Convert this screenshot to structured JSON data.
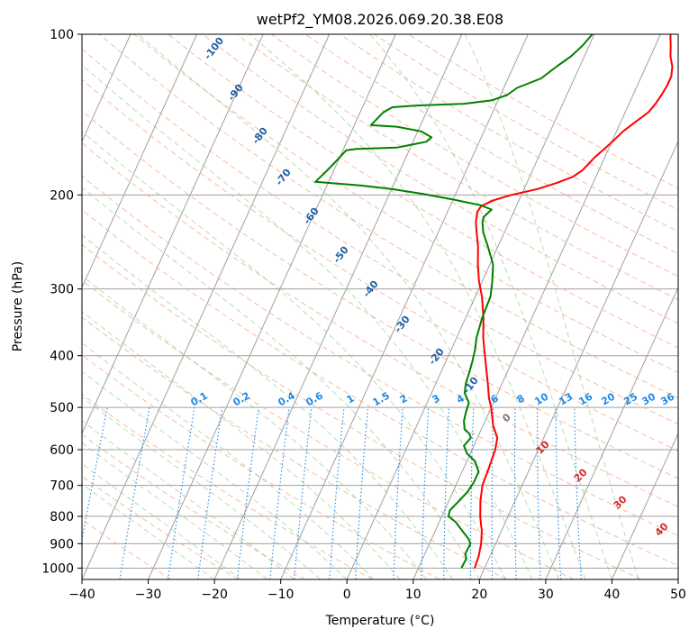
{
  "chart_data": {
    "type": "line",
    "title": "wetPf2_YM08.2026.069.20.38.E08",
    "xlabel": "Temperature (°C)",
    "ylabel": "Pressure (hPa)",
    "xlim": [
      -40,
      50
    ],
    "ylim": [
      1050,
      100
    ],
    "y_scale": "log",
    "grid": true,
    "x_ticks": [
      "−40",
      "−30",
      "−20",
      "−10",
      "0",
      "10",
      "20",
      "30",
      "40",
      "50"
    ],
    "x_tick_values": [
      -40,
      -30,
      -20,
      -10,
      0,
      10,
      20,
      30,
      40,
      50
    ],
    "y_ticks": [
      "100",
      "200",
      "300",
      "400",
      "500",
      "600",
      "700",
      "800",
      "900",
      "1000"
    ],
    "y_tick_values": [
      100,
      200,
      300,
      400,
      500,
      600,
      700,
      800,
      900,
      1000
    ],
    "series": [
      {
        "color": "#ff0000",
        "points": [
          [
            18.5,
            1000
          ],
          [
            18.3,
            950
          ],
          [
            17.8,
            900
          ],
          [
            17.0,
            850
          ],
          [
            16.5,
            830
          ],
          [
            15.8,
            800
          ],
          [
            14.8,
            750
          ],
          [
            14.0,
            700
          ],
          [
            13.8,
            650
          ],
          [
            13.5,
            600
          ],
          [
            13.0,
            570
          ],
          [
            11.5,
            540
          ],
          [
            10.0,
            500
          ],
          [
            9.0,
            480
          ],
          [
            7.8,
            450
          ],
          [
            5.5,
            400
          ],
          [
            4.0,
            370
          ],
          [
            2.7,
            340
          ],
          [
            1.0,
            310
          ],
          [
            -0.5,
            290
          ],
          [
            -1.8,
            270
          ],
          [
            -3.0,
            250
          ],
          [
            -4.2,
            235
          ],
          [
            -5.0,
            225
          ],
          [
            -5.5,
            215
          ],
          [
            -5.3,
            210
          ],
          [
            -4.0,
            205
          ],
          [
            -1.5,
            200
          ],
          [
            2.0,
            195
          ],
          [
            4.5,
            190
          ],
          [
            6.5,
            185
          ],
          [
            7.5,
            180
          ],
          [
            8.0,
            175
          ],
          [
            8.5,
            170
          ],
          [
            9.5,
            163
          ],
          [
            10.2,
            158
          ],
          [
            11.0,
            152
          ],
          [
            12.0,
            147
          ],
          [
            13.5,
            140
          ],
          [
            14.0,
            135
          ],
          [
            14.3,
            130
          ],
          [
            14.5,
            125
          ],
          [
            14.5,
            120
          ],
          [
            14.0,
            115
          ],
          [
            13.0,
            110
          ],
          [
            12.3,
            105
          ],
          [
            11.8,
            102
          ],
          [
            11.5,
            100
          ]
        ]
      },
      {
        "color": "#008000",
        "points": [
          [
            16.5,
            1000
          ],
          [
            16.6,
            960
          ],
          [
            16.1,
            940
          ],
          [
            16.2,
            900
          ],
          [
            15.5,
            880
          ],
          [
            14.0,
            850
          ],
          [
            12.5,
            820
          ],
          [
            11.0,
            800
          ],
          [
            10.8,
            780
          ],
          [
            11.5,
            750
          ],
          [
            12.2,
            720
          ],
          [
            12.5,
            690
          ],
          [
            12.5,
            660
          ],
          [
            11.2,
            630
          ],
          [
            9.5,
            610
          ],
          [
            8.5,
            590
          ],
          [
            9.0,
            570
          ],
          [
            8.5,
            560
          ],
          [
            7.5,
            550
          ],
          [
            6.8,
            530
          ],
          [
            6.5,
            510
          ],
          [
            6.3,
            490
          ],
          [
            5.0,
            470
          ],
          [
            4.5,
            450
          ],
          [
            4.3,
            430
          ],
          [
            4.0,
            410
          ],
          [
            3.6,
            390
          ],
          [
            3.0,
            370
          ],
          [
            2.5,
            340
          ],
          [
            2.3,
            310
          ],
          [
            1.5,
            290
          ],
          [
            0.5,
            270
          ],
          [
            -1.5,
            250
          ],
          [
            -3.2,
            235
          ],
          [
            -4.0,
            225
          ],
          [
            -4.2,
            220
          ],
          [
            -3.5,
            213
          ],
          [
            -5.5,
            209
          ],
          [
            -10.0,
            204
          ],
          [
            -15.0,
            199
          ],
          [
            -20.0,
            195
          ],
          [
            -25.0,
            192
          ],
          [
            -32.0,
            189
          ],
          [
            -31.0,
            180
          ],
          [
            -30.5,
            175
          ],
          [
            -30.0,
            170
          ],
          [
            -29.5,
            165
          ],
          [
            -28.0,
            164
          ],
          [
            -22.0,
            163
          ],
          [
            -20.0,
            161
          ],
          [
            -18.0,
            159
          ],
          [
            -17.5,
            156
          ],
          [
            -19.5,
            152
          ],
          [
            -23.5,
            149
          ],
          [
            -27.5,
            148
          ],
          [
            -27.0,
            144
          ],
          [
            -26.5,
            140
          ],
          [
            -25.5,
            137
          ],
          [
            -22.0,
            136
          ],
          [
            -15.0,
            135
          ],
          [
            -11.0,
            133
          ],
          [
            -9.0,
            130
          ],
          [
            -8.0,
            126
          ],
          [
            -5.0,
            121
          ],
          [
            -3.5,
            115
          ],
          [
            -2.0,
            110
          ],
          [
            -1.0,
            105
          ],
          [
            -0.3,
            100
          ]
        ]
      }
    ],
    "mixing_ratio_labels": [
      "0.1",
      "0.2",
      "0.4",
      "0.6",
      "1",
      "1.5",
      "2",
      "3",
      "4",
      "6",
      "8",
      "10",
      "13",
      "16",
      "20",
      "25",
      "30",
      "36"
    ],
    "mixing_ratio_values": [
      0.1,
      0.2,
      0.4,
      0.6,
      1,
      1.5,
      2,
      3,
      4,
      6,
      8,
      10,
      13,
      16,
      20,
      25,
      30,
      36
    ],
    "dry_adiabat_labels": [
      "-100",
      "-90",
      "-80",
      "-70",
      "-60",
      "-50",
      "-40",
      "-30",
      "-20",
      "-10"
    ],
    "moist_adiabat_labels": [
      "0",
      "10",
      "20",
      "30",
      "40"
    ],
    "colors": {
      "temperature": "#ff0000",
      "dewpoint": "#008000",
      "mixing_ratio": "#1e88e5",
      "dry_adiabat_label": "#1f5fa6",
      "moist_adiabat_label": "#d62728",
      "moist_adiabat_zero_label": "#777777",
      "dry_adiabat": "#f4a582",
      "moist_adiabat": "#7fbf7b",
      "isotherm": "#a0a0a0"
    }
  }
}
